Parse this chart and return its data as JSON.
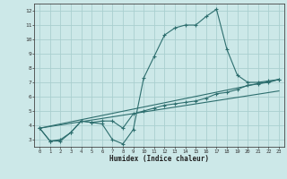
{
  "background_color": "#cce8e8",
  "grid_color": "#aacfcf",
  "line_color": "#2d6e6e",
  "xlabel": "Humidex (Indice chaleur)",
  "xlim": [
    -0.5,
    23.5
  ],
  "ylim": [
    2.5,
    12.5
  ],
  "yticks": [
    3,
    4,
    5,
    6,
    7,
    8,
    9,
    10,
    11,
    12
  ],
  "xticks": [
    0,
    1,
    2,
    3,
    4,
    5,
    6,
    7,
    8,
    9,
    10,
    11,
    12,
    13,
    14,
    15,
    16,
    17,
    18,
    19,
    20,
    21,
    22,
    23
  ],
  "line1_x": [
    0,
    1,
    2,
    3,
    4,
    5,
    6,
    7,
    8,
    9,
    10,
    11,
    12,
    13,
    14,
    15,
    16,
    17,
    18,
    19,
    20,
    21,
    22,
    23
  ],
  "line1_y": [
    3.8,
    2.9,
    2.9,
    3.5,
    4.3,
    4.2,
    4.1,
    3.0,
    2.7,
    3.7,
    7.3,
    8.8,
    10.3,
    10.8,
    11.0,
    11.0,
    11.6,
    12.1,
    9.3,
    7.5,
    7.0,
    7.0,
    7.1,
    7.2
  ],
  "line2_x": [
    0,
    1,
    2,
    3,
    4,
    5,
    6,
    7,
    8,
    9,
    10,
    11,
    12,
    13,
    14,
    15,
    16,
    17,
    18,
    19,
    20,
    21,
    22,
    23
  ],
  "line2_y": [
    3.8,
    2.9,
    3.0,
    3.5,
    4.3,
    4.2,
    4.3,
    4.3,
    3.8,
    4.8,
    5.0,
    5.2,
    5.4,
    5.5,
    5.6,
    5.7,
    5.9,
    6.2,
    6.3,
    6.5,
    6.8,
    6.9,
    7.0,
    7.2
  ],
  "line3_x": [
    0,
    23
  ],
  "line3_y": [
    3.8,
    7.2
  ],
  "line4_x": [
    0,
    23
  ],
  "line4_y": [
    3.8,
    6.4
  ]
}
